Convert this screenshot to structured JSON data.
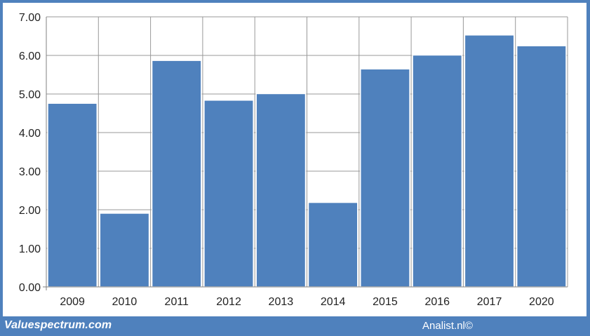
{
  "chart_data": {
    "type": "bar",
    "categories": [
      "2009",
      "2010",
      "2011",
      "2012",
      "2013",
      "2014",
      "2015",
      "2016",
      "2017",
      "2020"
    ],
    "values": [
      4.76,
      1.91,
      5.87,
      4.84,
      5.01,
      2.19,
      5.65,
      6.01,
      6.53,
      6.25
    ],
    "ylim": [
      0,
      7
    ],
    "yticks": [
      "0.00",
      "1.00",
      "2.00",
      "3.00",
      "4.00",
      "5.00",
      "6.00",
      "7.00"
    ],
    "grid": true,
    "legend": "none",
    "bar_color": "#4f81bd"
  },
  "footer": {
    "site": "Valuespectrum.com",
    "credit": "Analist.nl©"
  },
  "colors": {
    "frame": "#4f81bd",
    "grid": "#999999",
    "bar": "#4f81bd",
    "bar_edge": "#ffffff"
  }
}
